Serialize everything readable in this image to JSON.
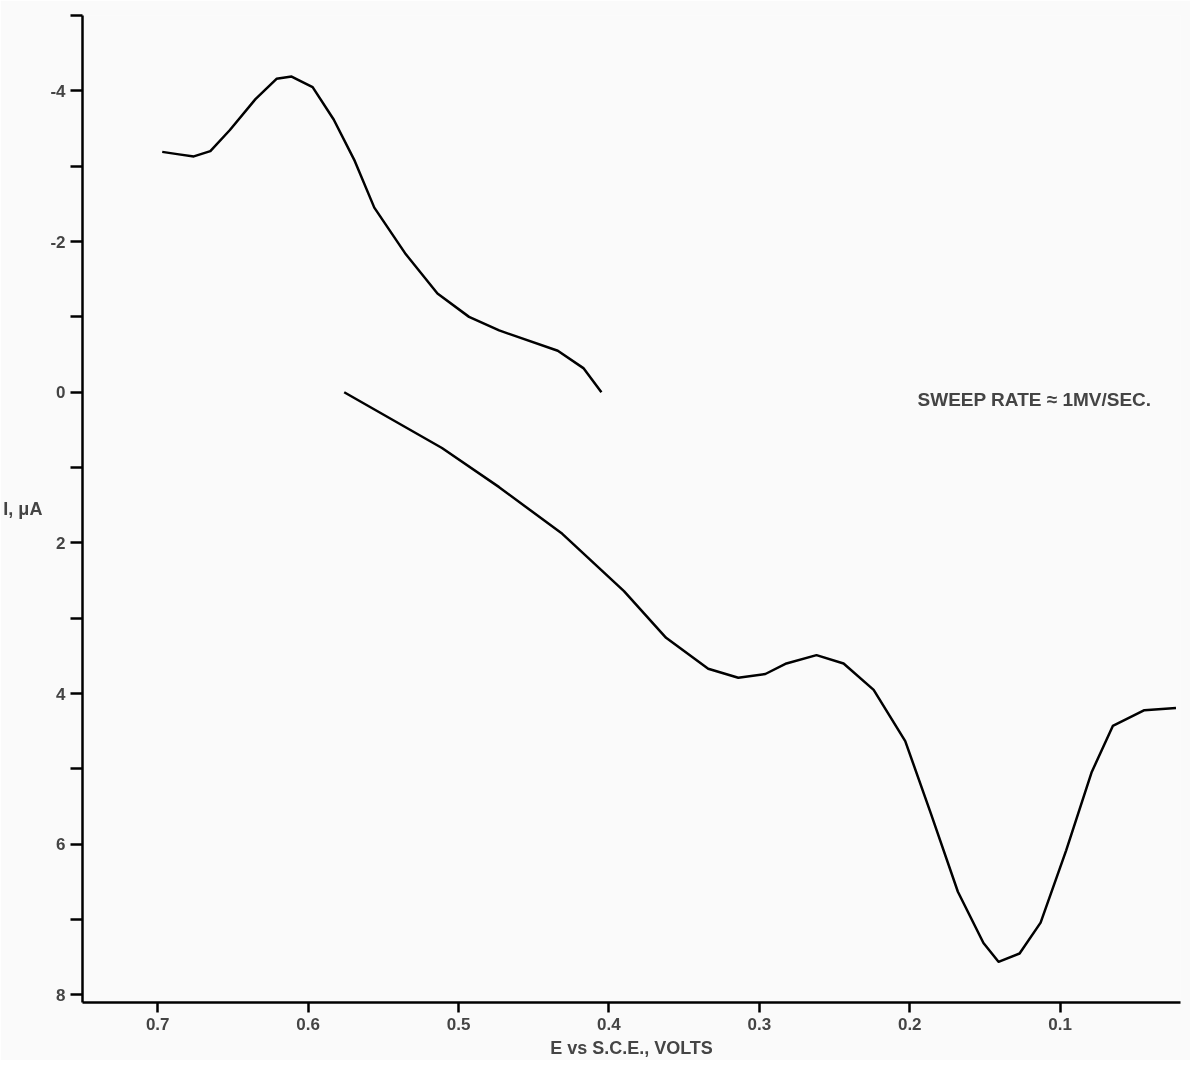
{
  "chart_data": {
    "type": "line",
    "xlabel": "E vs S.C.E., VOLTS",
    "ylabel": "I, μA",
    "annotations": [
      "SWEEP RATE ≈ 1MV/SEC."
    ],
    "xlim": [
      0.75,
      0.02
    ],
    "ylim": [
      8.1,
      -5
    ],
    "xticks": [
      0.7,
      0.6,
      0.5,
      0.4,
      0.3,
      0.2,
      0.1
    ],
    "yticks": [
      {
        "value": -5,
        "label": null
      },
      -4,
      {
        "value": -3,
        "label": null
      },
      -2,
      {
        "value": -1,
        "label": null
      },
      0,
      {
        "value": 1,
        "label": null
      },
      2,
      {
        "value": 3,
        "label": null
      },
      4,
      {
        "value": 5,
        "label": null
      },
      6,
      {
        "value": 7,
        "label": null
      },
      8
    ],
    "grid": false,
    "marker": "none",
    "line_style": "solid",
    "series": [
      {
        "color": "#000000",
        "x": [
          0.576,
          0.511,
          0.473,
          0.431,
          0.39,
          0.362,
          0.334,
          0.314,
          0.296,
          0.282,
          0.262,
          0.244,
          0.224,
          0.203,
          0.186,
          0.168,
          0.151,
          0.141,
          0.127,
          0.113,
          0.096,
          0.079,
          0.065,
          0.044,
          0.023
        ],
        "values": [
          0.0,
          0.74,
          1.26,
          1.88,
          2.64,
          3.26,
          3.67,
          3.79,
          3.74,
          3.6,
          3.49,
          3.6,
          3.95,
          4.63,
          5.59,
          6.63,
          7.31,
          7.56,
          7.45,
          7.04,
          6.08,
          5.04,
          4.43,
          4.22,
          4.19
        ]
      },
      {
        "color": "#000000",
        "x": [
          0.405,
          0.417,
          0.434,
          0.473,
          0.493,
          0.514,
          0.535,
          0.556,
          0.569,
          0.583,
          0.597,
          0.611,
          0.621,
          0.635,
          0.652,
          0.665,
          0.676,
          0.687,
          0.697
        ],
        "values": [
          0.0,
          -0.32,
          -0.55,
          -0.82,
          -1.0,
          -1.31,
          -1.83,
          -2.45,
          -3.07,
          -3.62,
          -4.05,
          -4.19,
          -4.16,
          -3.89,
          -3.48,
          -3.2,
          -3.13,
          -3.16,
          -3.19
        ]
      }
    ]
  }
}
